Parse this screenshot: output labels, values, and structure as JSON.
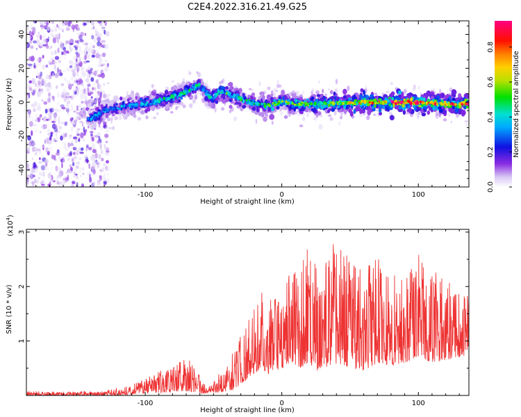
{
  "title": "C2E4.2022.316.21.49.G25",
  "chart_data": [
    {
      "type": "heatmap",
      "xlabel": "Height of straight line (km)",
      "ylabel": "Frequency (Hz)",
      "xlim": [
        -187,
        137
      ],
      "ylim": [
        -50,
        48
      ],
      "xticks": [
        -100,
        0,
        100
      ],
      "yticks": [
        -40,
        -20,
        0,
        20,
        40
      ],
      "colorbar": {
        "label": "Normalized spectral amplitude",
        "range": [
          0,
          0.95
        ],
        "ticks": [
          0.0,
          0.2,
          0.4,
          0.6,
          0.8
        ]
      },
      "ridge_frequency_hz": {
        "x": [
          -140,
          -130,
          -120,
          -110,
          -100,
          -90,
          -80,
          -70,
          -60,
          -55,
          -50,
          -45,
          -40,
          -30,
          -20,
          -10,
          0,
          10,
          20,
          40,
          60,
          80,
          100,
          120,
          135
        ],
        "y": [
          -10,
          -5,
          -3,
          -2,
          -1,
          1,
          3,
          6,
          10,
          5,
          2,
          7,
          5,
          2,
          -1,
          -2,
          0,
          -1,
          -1,
          -1,
          0,
          0,
          0,
          -1,
          -1
        ]
      },
      "ridge_amplitude": {
        "x": [
          -140,
          -120,
          -100,
          -80,
          -60,
          -40,
          -20,
          0,
          20,
          40,
          60,
          80,
          100,
          120,
          135
        ],
        "y": [
          0.35,
          0.35,
          0.4,
          0.45,
          0.45,
          0.5,
          0.45,
          0.55,
          0.55,
          0.6,
          0.75,
          0.85,
          0.9,
          0.8,
          0.85
        ]
      }
    },
    {
      "type": "line",
      "xlabel": "Height of straight line (km)",
      "ylabel": "SNR (10 * v/v)",
      "y_multiplier": "(x10",
      "y_multiplier_exp": "4",
      "y_multiplier_close": ")",
      "xlim": [
        -187,
        137
      ],
      "ylim": [
        0,
        3.05
      ],
      "xticks": [
        -100,
        0,
        100
      ],
      "yticks": [
        1,
        2,
        3
      ],
      "color": "#ee3333",
      "envelope": {
        "x": [
          -187,
          -160,
          -130,
          -120,
          -110,
          -100,
          -90,
          -82,
          -75,
          -70,
          -65,
          -60,
          -55,
          -50,
          -45,
          -40,
          -35,
          -30,
          -25,
          -20,
          -15,
          -10,
          -5,
          0,
          5,
          10,
          15,
          20,
          25,
          30,
          40,
          50,
          60,
          70,
          80,
          90,
          100,
          110,
          120,
          130,
          137
        ],
        "upper": [
          0.08,
          0.07,
          0.08,
          0.15,
          0.2,
          0.3,
          0.45,
          0.55,
          0.65,
          0.75,
          0.55,
          0.35,
          0.15,
          0.25,
          0.45,
          0.6,
          0.85,
          1.1,
          1.35,
          1.65,
          2.0,
          1.75,
          1.85,
          2.0,
          2.2,
          2.5,
          2.4,
          3.0,
          2.6,
          2.7,
          2.8,
          2.5,
          2.3,
          2.6,
          2.2,
          2.4,
          2.7,
          2.3,
          2.2,
          2.0,
          1.9
        ],
        "lower": [
          0.0,
          0.0,
          0.0,
          0.0,
          0.02,
          0.04,
          0.05,
          0.06,
          0.08,
          0.08,
          0.06,
          0.04,
          0.03,
          0.05,
          0.06,
          0.08,
          0.1,
          0.2,
          0.3,
          0.4,
          0.5,
          0.4,
          0.45,
          0.5,
          0.5,
          0.55,
          0.5,
          0.6,
          0.45,
          0.5,
          0.55,
          0.5,
          0.45,
          0.6,
          0.55,
          0.6,
          0.7,
          0.6,
          0.65,
          0.7,
          0.75
        ]
      }
    }
  ]
}
